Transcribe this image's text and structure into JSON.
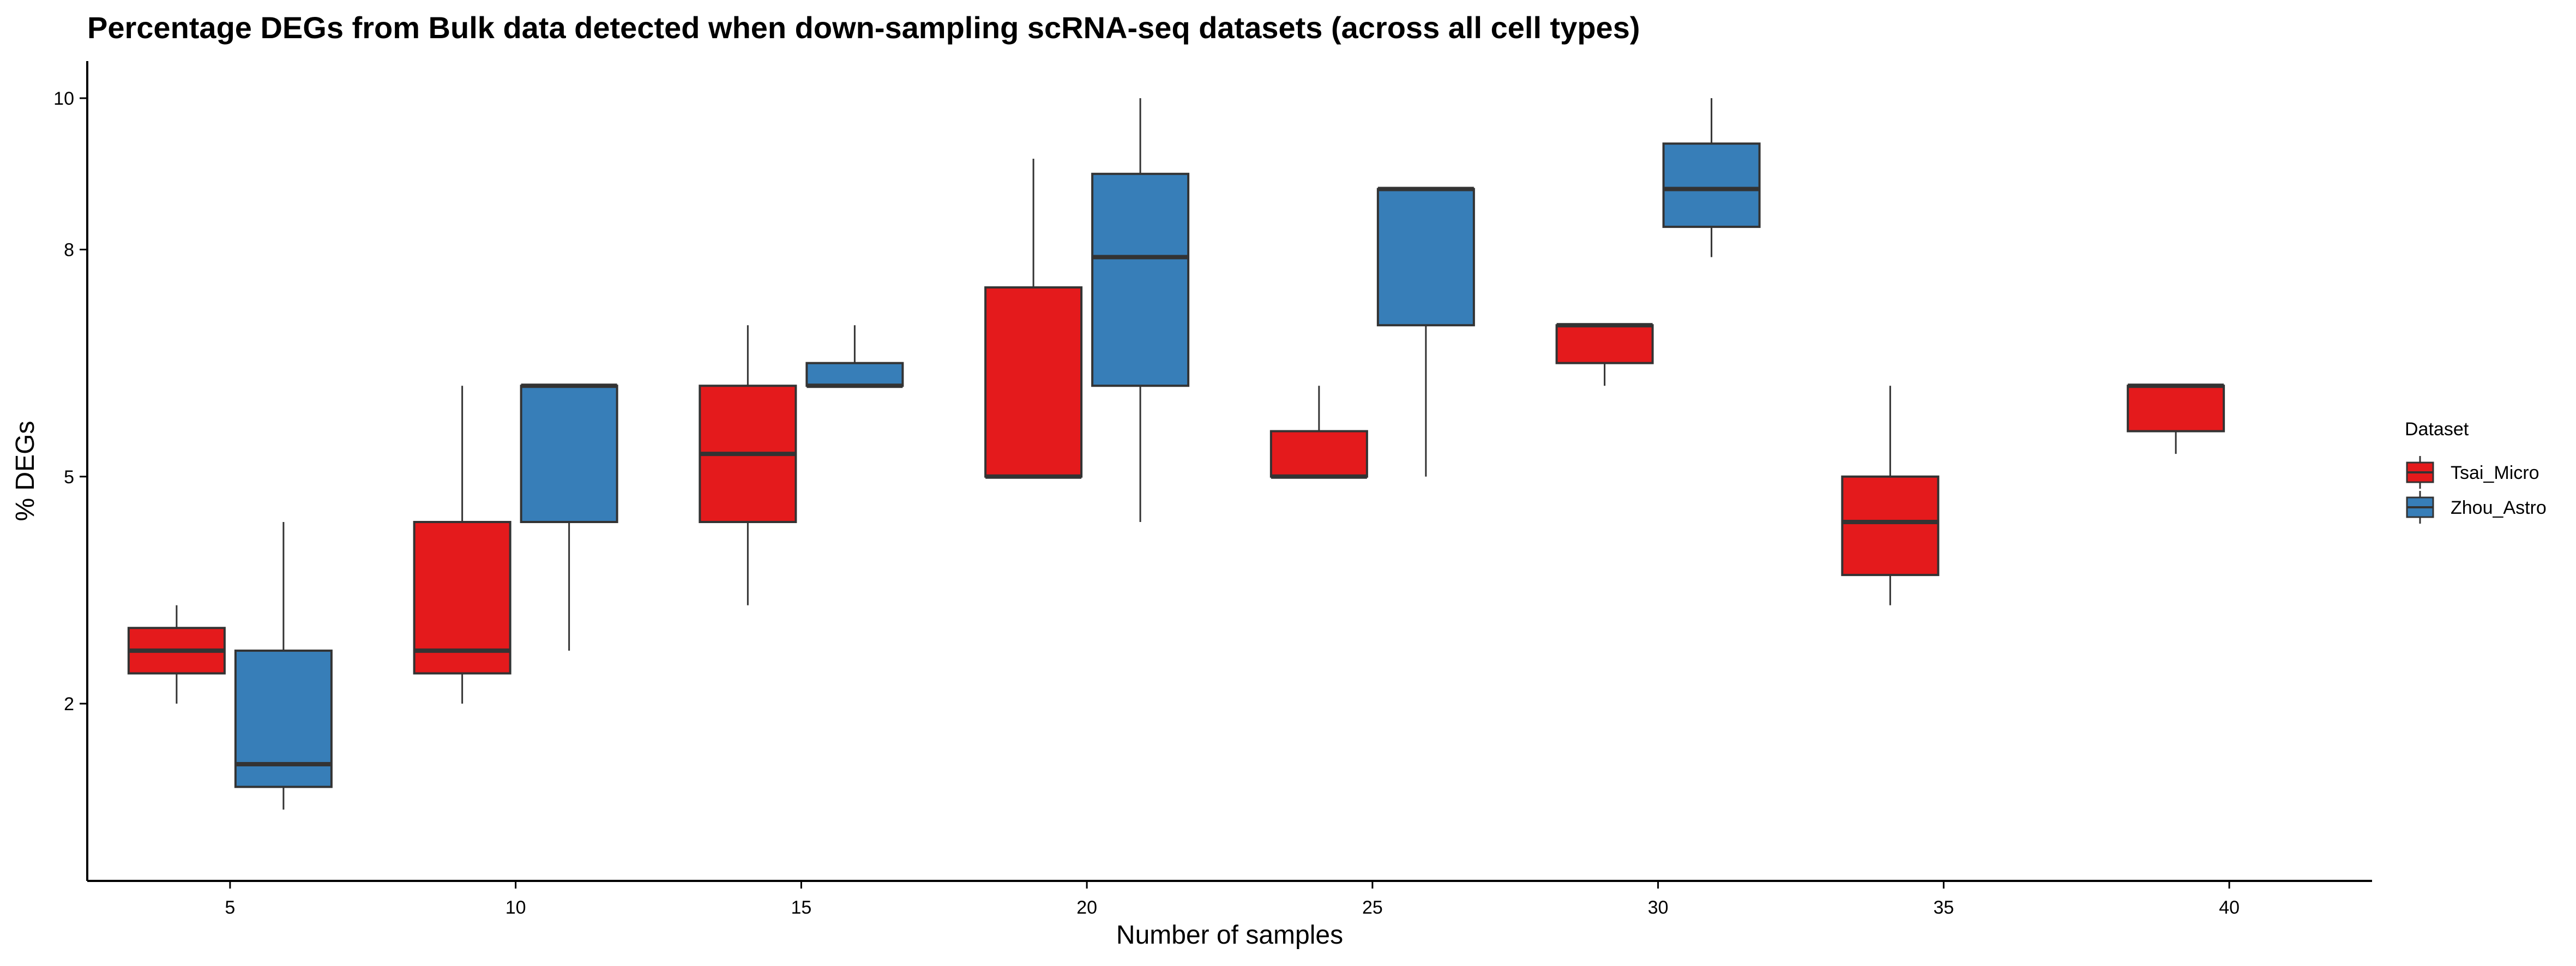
{
  "chart_data": {
    "type": "boxplot",
    "title": "Percentage DEGs from Bulk data detected when down-sampling scRNA-seq datasets (across all cell types)",
    "xlabel": "Number of samples",
    "ylabel": "% DEGs",
    "categories": [
      "5",
      "10",
      "15",
      "20",
      "25",
      "30",
      "35",
      "40"
    ],
    "yticks": [
      2,
      5,
      8,
      10
    ],
    "legend": {
      "title": "Dataset",
      "position": "right"
    },
    "series": [
      {
        "name": "Tsai_Micro",
        "color": "#E41A1C",
        "boxes": [
          {
            "x": "5",
            "low": 2.0,
            "q1": 2.4,
            "median": 2.7,
            "q3": 3.0,
            "high": 3.3
          },
          {
            "x": "10",
            "low": 2.0,
            "q1": 2.4,
            "median": 2.7,
            "q3": 4.4,
            "high": 6.2
          },
          {
            "x": "15",
            "low": 3.3,
            "q1": 4.4,
            "median": 5.3,
            "q3": 6.2,
            "high": 7.0
          },
          {
            "x": "20",
            "low": 5.0,
            "q1": 5.0,
            "median": 5.0,
            "q3": 7.5,
            "high": 9.2
          },
          {
            "x": "25",
            "low": 5.0,
            "q1": 5.0,
            "median": 5.0,
            "q3": 5.6,
            "high": 6.2
          },
          {
            "x": "30",
            "low": 6.2,
            "q1": 6.5,
            "median": 7.0,
            "q3": 7.0,
            "high": 7.0
          },
          {
            "x": "35",
            "low": 3.3,
            "q1": 3.7,
            "median": 4.4,
            "q3": 5.0,
            "high": 6.2
          },
          {
            "x": "40",
            "low": 5.3,
            "q1": 5.6,
            "median": 6.2,
            "q3": 6.2,
            "high": 6.2
          }
        ]
      },
      {
        "name": "Zhou_Astro",
        "color": "#377EB8",
        "boxes": [
          {
            "x": "5",
            "low": 0.6,
            "q1": 0.9,
            "median": 1.2,
            "q3": 2.7,
            "high": 4.4
          },
          {
            "x": "10",
            "low": 2.7,
            "q1": 4.4,
            "median": 6.2,
            "q3": 6.2,
            "high": 6.2
          },
          {
            "x": "15",
            "low": 6.2,
            "q1": 6.2,
            "median": 6.2,
            "q3": 6.5,
            "high": 7.0
          },
          {
            "x": "20",
            "low": 4.4,
            "q1": 6.2,
            "median": 7.9,
            "q3": 9.0,
            "high": 10.0
          },
          {
            "x": "25",
            "low": 5.0,
            "q1": 7.0,
            "median": 8.8,
            "q3": 8.8,
            "high": 8.8
          },
          {
            "x": "30",
            "low": 7.9,
            "q1": 8.3,
            "median": 8.8,
            "q3": 9.4,
            "high": 10.0
          }
        ]
      }
    ]
  }
}
